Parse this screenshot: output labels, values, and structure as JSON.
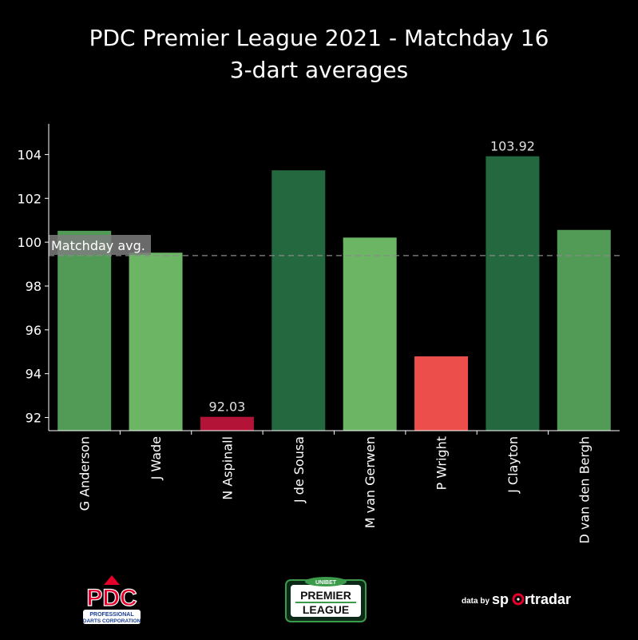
{
  "title": {
    "line1": "PDC Premier League 2021 - Matchday 16",
    "line2": "3-dart averages"
  },
  "chart_data": {
    "type": "bar",
    "categories": [
      "G Anderson",
      "J Wade",
      "N Aspinall",
      "J de Sousa",
      "M van Gerwen",
      "P Wright",
      "J Clayton",
      "D van den Bergh"
    ],
    "values": [
      100.52,
      99.52,
      92.03,
      103.28,
      100.21,
      94.79,
      103.92,
      100.56
    ],
    "colors": [
      "#529b57",
      "#6bb565",
      "#b31336",
      "#23683e",
      "#6bb565",
      "#ec4f4b",
      "#23683e",
      "#529b57"
    ],
    "data_labels": {
      "N Aspinall": "92.03",
      "J Clayton": "103.92"
    },
    "yticks": [
      92,
      94,
      96,
      98,
      100,
      102,
      104
    ],
    "ylim": [
      91.4,
      105.4
    ],
    "reference_line": {
      "label": "Matchday avg.",
      "value": 99.39
    },
    "xlabel": "",
    "ylabel": "",
    "grid": false
  },
  "logos": {
    "pdc": {
      "main": "PDC",
      "sub1": "PROFESSIONAL",
      "sub2": "DARTS CORPORATION",
      "color": "#e4002b",
      "blue": "#1b3f94"
    },
    "premier_league": {
      "top": "UNIBET",
      "main1": "PREMIER",
      "main2": "LEAGUE",
      "accent": "#3c9a4b"
    },
    "sportradar": {
      "prefix": "data by",
      "name_a": "sp",
      "name_b": "rtradar",
      "accent": "#e4002b"
    }
  }
}
